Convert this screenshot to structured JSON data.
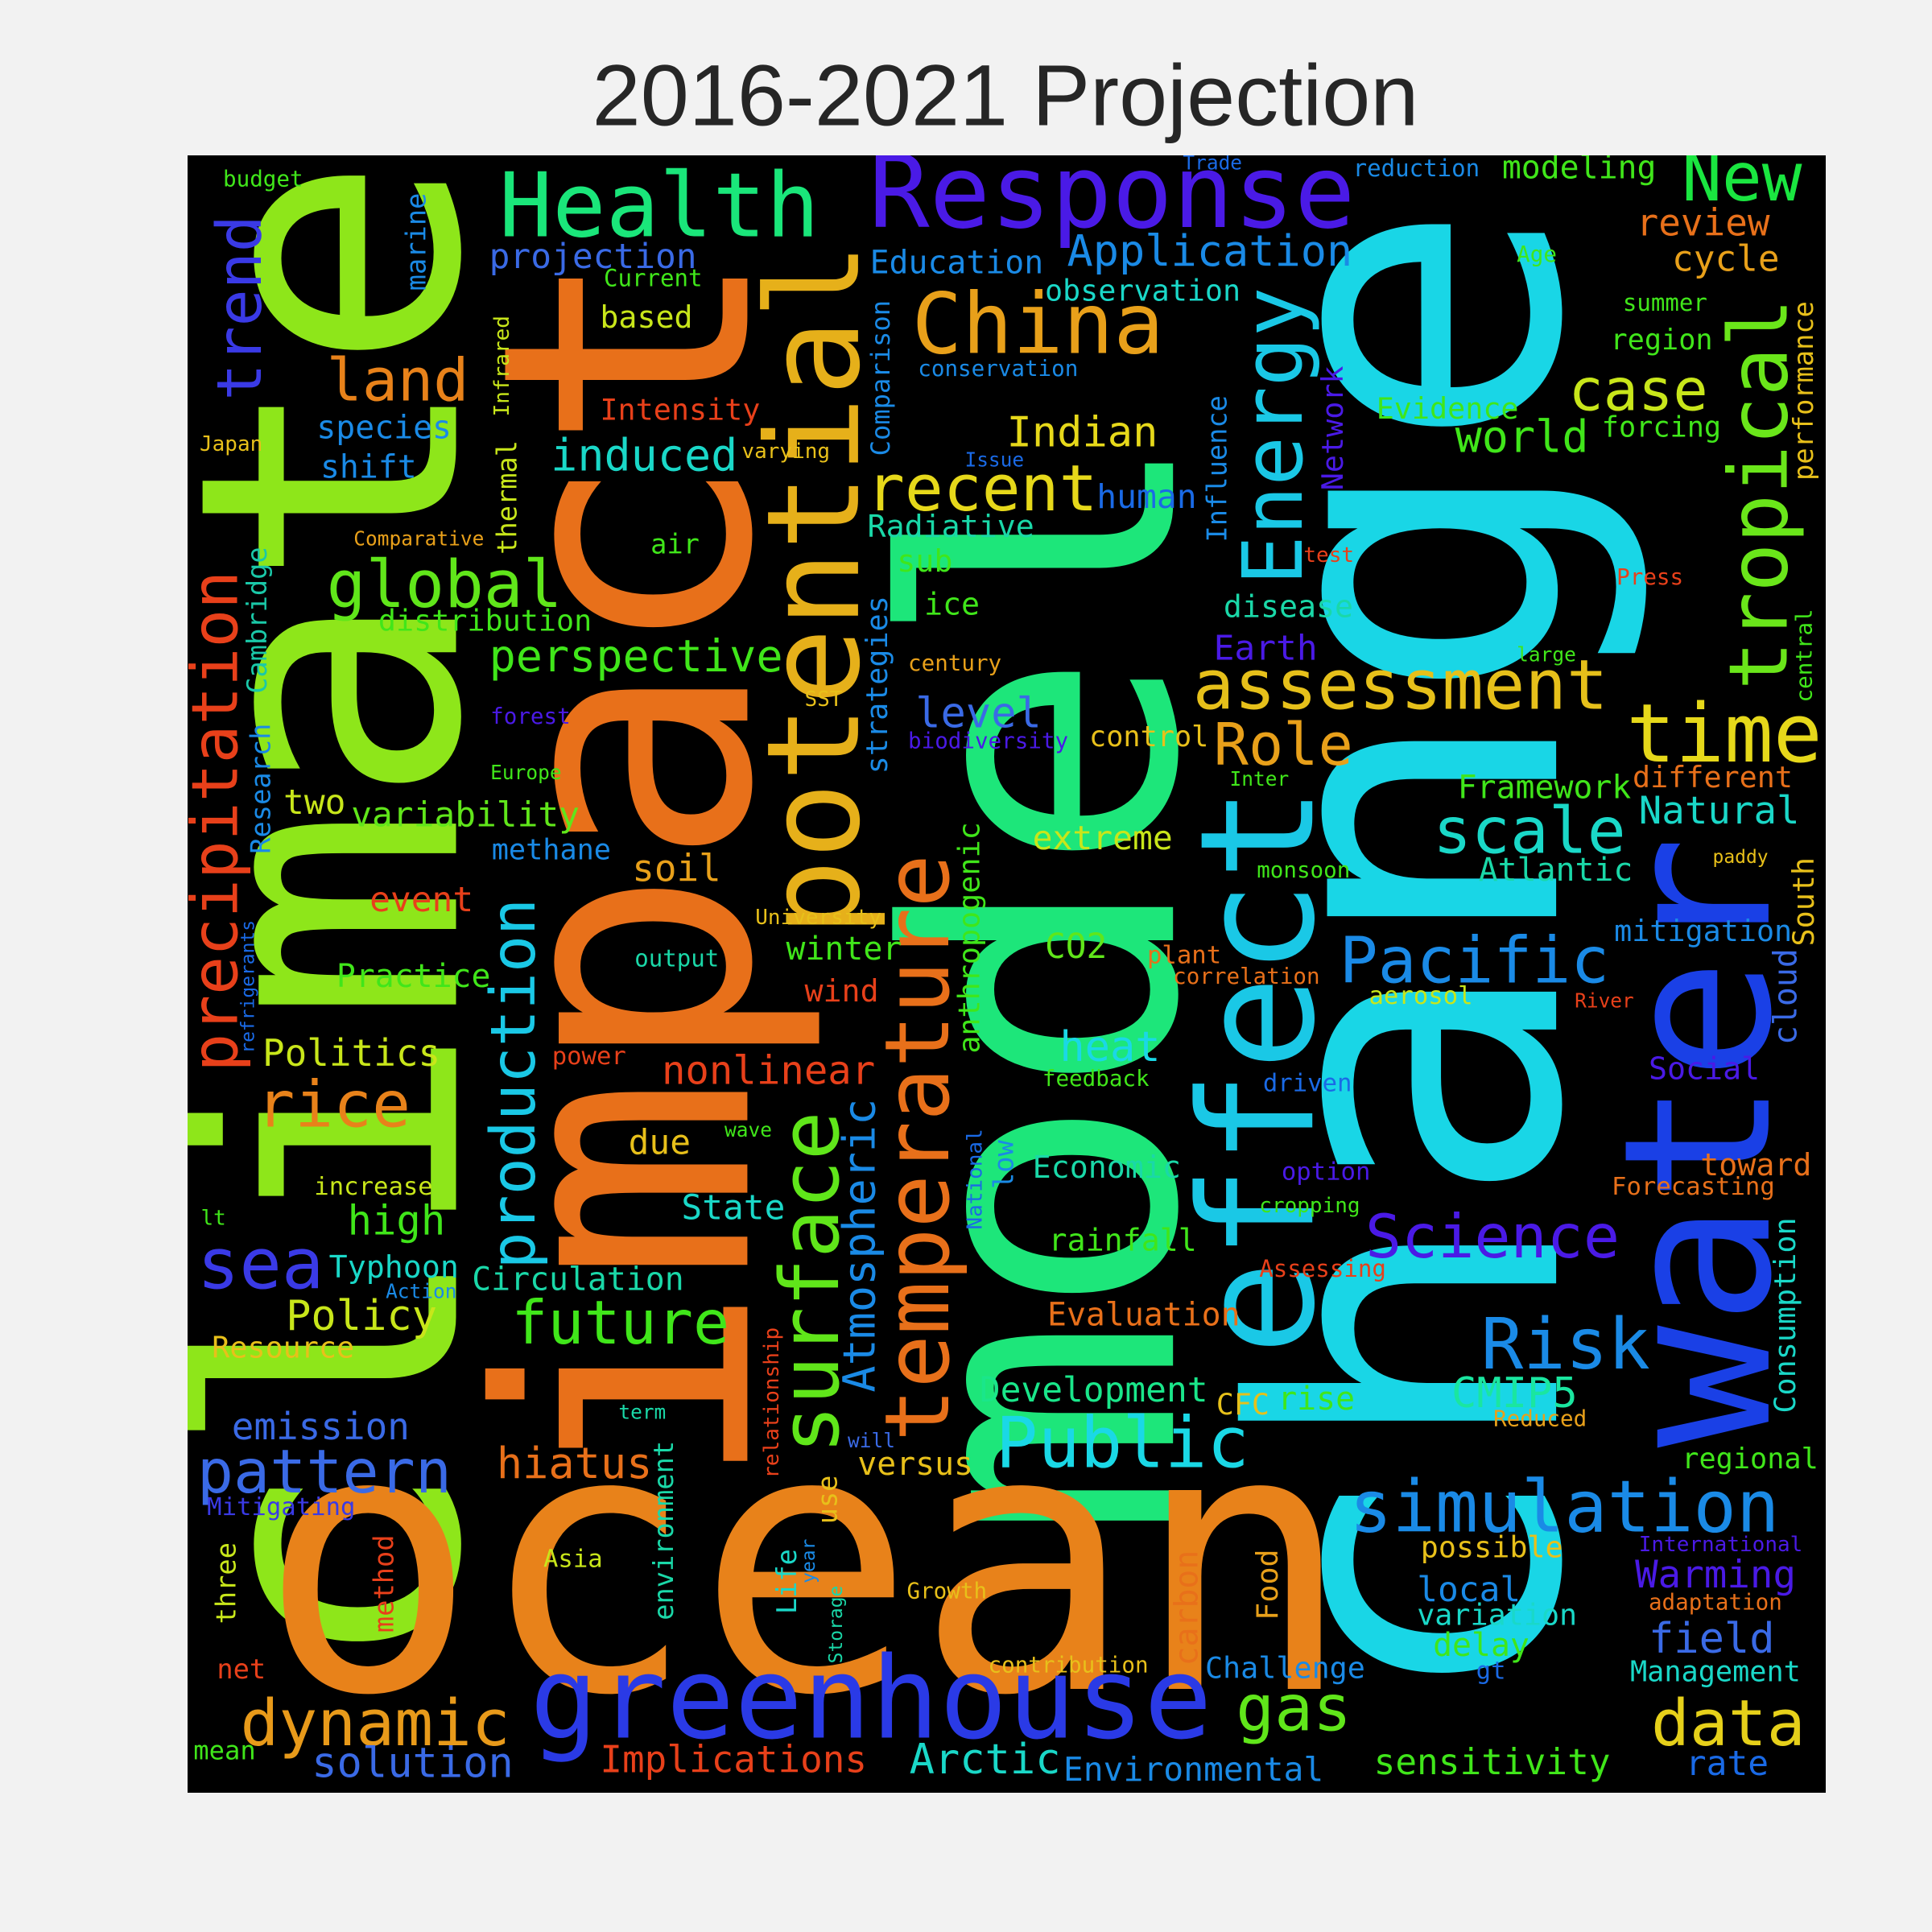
{
  "chart_data": {
    "type": "wordcloud",
    "title": "2016-2021 Projection",
    "background": "#000000",
    "words": [
      {
        "text": "climate",
        "color": "#8ee61a"
      },
      {
        "text": "impact",
        "color": "#e8701a"
      },
      {
        "text": "model",
        "color": "#1de67a"
      },
      {
        "text": "change",
        "color": "#19d6e6"
      },
      {
        "text": "ocean",
        "color": "#e8821a"
      },
      {
        "text": "water",
        "color": "#1a40e6"
      },
      {
        "text": "greenhouse",
        "color": "#2a3ae6"
      },
      {
        "text": "effect",
        "color": "#1ac8e6"
      },
      {
        "text": "potential",
        "color": "#e6b01a"
      },
      {
        "text": "temperature",
        "color": "#e8701a"
      },
      {
        "text": "surface",
        "color": "#60e61a"
      },
      {
        "text": "Response",
        "color": "#4a1ae6"
      },
      {
        "text": "Health",
        "color": "#1ae67a"
      },
      {
        "text": "China",
        "color": "#e8a01a"
      },
      {
        "text": "Energy",
        "color": "#1ac8e6"
      },
      {
        "text": "tropical",
        "color": "#6ae61a"
      },
      {
        "text": "precipitation",
        "color": "#e8401a"
      },
      {
        "text": "trend",
        "color": "#3a3ae6"
      },
      {
        "text": "time",
        "color": "#e6d81a"
      },
      {
        "text": "New",
        "color": "#1ae640"
      },
      {
        "text": "assessment",
        "color": "#e6c01a"
      },
      {
        "text": "recent",
        "color": "#e6d81a"
      },
      {
        "text": "global",
        "color": "#60e61a"
      },
      {
        "text": "land",
        "color": "#e8821a"
      },
      {
        "text": "case",
        "color": "#c8e61a"
      },
      {
        "text": "Role",
        "color": "#e8a01a"
      },
      {
        "text": "scale",
        "color": "#1ad8c8"
      },
      {
        "text": "Pacific",
        "color": "#1a8ae6"
      },
      {
        "text": "Risk",
        "color": "#1a8ae6"
      },
      {
        "text": "Science",
        "color": "#4a1ae6"
      },
      {
        "text": "simulation",
        "color": "#1a8ae6"
      },
      {
        "text": "data",
        "color": "#e6d01a"
      },
      {
        "text": "gas",
        "color": "#60e61a"
      },
      {
        "text": "Public",
        "color": "#1ad8e6"
      },
      {
        "text": "future",
        "color": "#40e61a"
      },
      {
        "text": "rice",
        "color": "#e8821a"
      },
      {
        "text": "sea",
        "color": "#3a3ae6"
      },
      {
        "text": "dynamic",
        "color": "#e89a1a"
      },
      {
        "text": "pattern",
        "color": "#3a6ae6"
      },
      {
        "text": "production",
        "color": "#1ac8e6"
      },
      {
        "text": "perspective",
        "color": "#40e61a"
      },
      {
        "text": "induced",
        "color": "#1ad8c8"
      },
      {
        "text": "Atmospheric",
        "color": "#1a8ae6"
      },
      {
        "text": "Indian",
        "color": "#e6d81a"
      },
      {
        "text": "Application",
        "color": "#1a8ae6"
      },
      {
        "text": "world",
        "color": "#40e61a"
      },
      {
        "text": "heat",
        "color": "#1ad8e6"
      },
      {
        "text": "Natural",
        "color": "#1ad8c8"
      },
      {
        "text": "Evaluation",
        "color": "#e8701a"
      },
      {
        "text": "Policy",
        "color": "#c8e61a"
      },
      {
        "text": "high",
        "color": "#40e61a"
      },
      {
        "text": "Arctic",
        "color": "#1ad8c8"
      },
      {
        "text": "solution",
        "color": "#3a6ae6"
      },
      {
        "text": "Implications",
        "color": "#e8401a"
      },
      {
        "text": "Environmental",
        "color": "#1a8ae6"
      },
      {
        "text": "sensitivity",
        "color": "#40e61a"
      },
      {
        "text": "rate",
        "color": "#1a6ae6"
      },
      {
        "text": "Management",
        "color": "#1ad8c8"
      },
      {
        "text": "field",
        "color": "#3a6ae6"
      },
      {
        "text": "Warming",
        "color": "#4a1ae6"
      },
      {
        "text": "local",
        "color": "#1a8ae6"
      },
      {
        "text": "variation",
        "color": "#1ad8c8"
      },
      {
        "text": "delay",
        "color": "#40e61a"
      },
      {
        "text": "Challenge",
        "color": "#1a8ae6"
      },
      {
        "text": "emission",
        "color": "#3a6ae6"
      },
      {
        "text": "hiatus",
        "color": "#e8701a"
      },
      {
        "text": "versus",
        "color": "#e8c01a"
      },
      {
        "text": "Development",
        "color": "#1ae68a"
      },
      {
        "text": "CMIP5",
        "color": "#1ae6a0"
      },
      {
        "text": "rise",
        "color": "#40e61a"
      },
      {
        "text": "CFC",
        "color": "#e6c01a"
      },
      {
        "text": "Circulation",
        "color": "#1ad8a8"
      },
      {
        "text": "Typhoon",
        "color": "#1ad8c8"
      },
      {
        "text": "State",
        "color": "#1ad8c8"
      },
      {
        "text": "due",
        "color": "#e8c01a"
      },
      {
        "text": "nonlinear",
        "color": "#e8401a"
      },
      {
        "text": "Politics",
        "color": "#c8e61a"
      },
      {
        "text": "Practice",
        "color": "#40e61a"
      },
      {
        "text": "winter",
        "color": "#40e61a"
      },
      {
        "text": "wind",
        "color": "#e8401a"
      },
      {
        "text": "CO2",
        "color": "#60e61a"
      },
      {
        "text": "extreme",
        "color": "#c8e61a"
      },
      {
        "text": "soil",
        "color": "#e8a01a"
      },
      {
        "text": "variability",
        "color": "#60e61a"
      },
      {
        "text": "two",
        "color": "#c8e61a"
      },
      {
        "text": "methane",
        "color": "#1a8ae6"
      },
      {
        "text": "event",
        "color": "#e8401a"
      },
      {
        "text": "level",
        "color": "#3a6ae6"
      },
      {
        "text": "control",
        "color": "#e8c01a"
      },
      {
        "text": "Framework",
        "color": "#40e61a"
      },
      {
        "text": "different",
        "color": "#e8701a"
      },
      {
        "text": "Atlantic",
        "color": "#1ad8a8"
      },
      {
        "text": "mitigation",
        "color": "#1a8ae6"
      },
      {
        "text": "human",
        "color": "#1a6ae6"
      },
      {
        "text": "Radiative",
        "color": "#1ad8a8"
      },
      {
        "text": "sub",
        "color": "#40e61a"
      },
      {
        "text": "ice",
        "color": "#40e61a"
      },
      {
        "text": "disease",
        "color": "#1ad8a8"
      },
      {
        "text": "Earth",
        "color": "#4a1ae6"
      },
      {
        "text": "Education",
        "color": "#1a8ae6"
      },
      {
        "text": "observation",
        "color": "#1ad8c8"
      },
      {
        "text": "conservation",
        "color": "#1a8ae6"
      },
      {
        "text": "review",
        "color": "#e8701a"
      },
      {
        "text": "cycle",
        "color": "#e8a01a"
      },
      {
        "text": "modeling",
        "color": "#40e61a"
      },
      {
        "text": "reduction",
        "color": "#1a8ae6"
      },
      {
        "text": "Trade",
        "color": "#1a6ae6"
      },
      {
        "text": "Age",
        "color": "#40e61a"
      },
      {
        "text": "summer",
        "color": "#40e61a"
      },
      {
        "text": "region",
        "color": "#40e61a"
      },
      {
        "text": "forcing",
        "color": "#40e61a"
      },
      {
        "text": "Evidence",
        "color": "#40e61a"
      },
      {
        "text": "performance",
        "color": "#e8c01a"
      },
      {
        "text": "central",
        "color": "#40e61a"
      },
      {
        "text": "South",
        "color": "#e8c01a"
      },
      {
        "text": "cloud",
        "color": "#3a6ae6"
      },
      {
        "text": "Consumption",
        "color": "#1ad8c8"
      },
      {
        "text": "Press",
        "color": "#e8401a"
      },
      {
        "text": "large",
        "color": "#40e61a"
      },
      {
        "text": "test",
        "color": "#e8401a"
      },
      {
        "text": "Inter",
        "color": "#40e61a"
      },
      {
        "text": "monsoon",
        "color": "#40e61a"
      },
      {
        "text": "paddy",
        "color": "#e8c01a"
      },
      {
        "text": "River",
        "color": "#e8401a"
      },
      {
        "text": "aerosol",
        "color": "#c8e61a"
      },
      {
        "text": "correlation",
        "color": "#e8701a"
      },
      {
        "text": "plant",
        "color": "#e8701a"
      },
      {
        "text": "Social",
        "color": "#4a1ae6"
      },
      {
        "text": "toward",
        "color": "#e8701a"
      },
      {
        "text": "Forecasting",
        "color": "#e8701a"
      },
      {
        "text": "driven",
        "color": "#1a6ae6"
      },
      {
        "text": "option",
        "color": "#4a1ae6"
      },
      {
        "text": "cropping",
        "color": "#40e61a"
      },
      {
        "text": "Assessing",
        "color": "#e8401a"
      },
      {
        "text": "Reduced",
        "color": "#e8a01a"
      },
      {
        "text": "regional",
        "color": "#40e61a"
      },
      {
        "text": "possible",
        "color": "#e8c01a"
      },
      {
        "text": "International",
        "color": "#4a1ae6"
      },
      {
        "text": "adaptation",
        "color": "#e8701a"
      },
      {
        "text": "gt",
        "color": "#1a6ae6"
      },
      {
        "text": "contribution",
        "color": "#e8c01a"
      },
      {
        "text": "Growth",
        "color": "#e8c01a"
      },
      {
        "text": "Food",
        "color": "#e8a01a"
      },
      {
        "text": "carbon",
        "color": "#e8701a"
      },
      {
        "text": "Economic",
        "color": "#1ad8a8"
      },
      {
        "text": "rainfall",
        "color": "#40e61a"
      },
      {
        "text": "low",
        "color": "#1a8ae6"
      },
      {
        "text": "National",
        "color": "#1a6ae6"
      },
      {
        "text": "anthropogenic",
        "color": "#40e61a"
      },
      {
        "text": "feedback",
        "color": "#40e61a"
      },
      {
        "text": "strategies",
        "color": "#1a8ae6"
      },
      {
        "text": "century",
        "color": "#e8a01a"
      },
      {
        "text": "biodiversity",
        "color": "#4a1ae6"
      },
      {
        "text": "SST",
        "color": "#e8c01a"
      },
      {
        "text": "Comparison",
        "color": "#1a8ae6"
      },
      {
        "text": "Issue",
        "color": "#1a6ae6"
      },
      {
        "text": "varying",
        "color": "#e8c01a"
      },
      {
        "text": "Intensity",
        "color": "#e8401a"
      },
      {
        "text": "Current",
        "color": "#40e61a"
      },
      {
        "text": "projection",
        "color": "#3a6ae6"
      },
      {
        "text": "based",
        "color": "#c8e61a"
      },
      {
        "text": "marine",
        "color": "#1a8ae6"
      },
      {
        "text": "budget",
        "color": "#40e61a"
      },
      {
        "text": "species",
        "color": "#1a8ae6"
      },
      {
        "text": "shift",
        "color": "#1a8ae6"
      },
      {
        "text": "Japan",
        "color": "#e8c01a"
      },
      {
        "text": "Infrared",
        "color": "#c8e61a"
      },
      {
        "text": "thermal",
        "color": "#c8e61a"
      },
      {
        "text": "Comparative",
        "color": "#e8a01a"
      },
      {
        "text": "air",
        "color": "#40e61a"
      },
      {
        "text": "distribution",
        "color": "#40e61a"
      },
      {
        "text": "Cambridge",
        "color": "#1ac8a8"
      },
      {
        "text": "Research",
        "color": "#1a8ae6"
      },
      {
        "text": "forest",
        "color": "#4a1ae6"
      },
      {
        "text": "Europe",
        "color": "#40e61a"
      },
      {
        "text": "University",
        "color": "#e8c01a"
      },
      {
        "text": "output",
        "color": "#1ad8a8"
      },
      {
        "text": "refrigerants",
        "color": "#1a6ae6"
      },
      {
        "text": "power",
        "color": "#e8401a"
      },
      {
        "text": "wave",
        "color": "#40e61a"
      },
      {
        "text": "increase",
        "color": "#c8e61a"
      },
      {
        "text": "lt",
        "color": "#40e61a"
      },
      {
        "text": "Action",
        "color": "#1a8ae6"
      },
      {
        "text": "Resource",
        "color": "#e8c01a"
      },
      {
        "text": "relationship",
        "color": "#e8401a"
      },
      {
        "text": "use",
        "color": "#e8c01a"
      },
      {
        "text": "term",
        "color": "#1ad8a8"
      },
      {
        "text": "will",
        "color": "#3a6ae6"
      },
      {
        "text": "environment",
        "color": "#1ad8a8"
      },
      {
        "text": "Life",
        "color": "#1ad8c8"
      },
      {
        "text": "year",
        "color": "#1a8ae6"
      },
      {
        "text": "Storage",
        "color": "#1ad8a8"
      },
      {
        "text": "Asia",
        "color": "#c8e61a"
      },
      {
        "text": "Mitigating",
        "color": "#3a3ae6"
      },
      {
        "text": "three",
        "color": "#c8e61a"
      },
      {
        "text": "method",
        "color": "#e8401a"
      },
      {
        "text": "net",
        "color": "#e8401a"
      },
      {
        "text": "mean",
        "color": "#40e61a"
      },
      {
        "text": "Network",
        "color": "#4a1ae6"
      },
      {
        "text": "Influence",
        "color": "#1a8ae6"
      }
    ]
  }
}
